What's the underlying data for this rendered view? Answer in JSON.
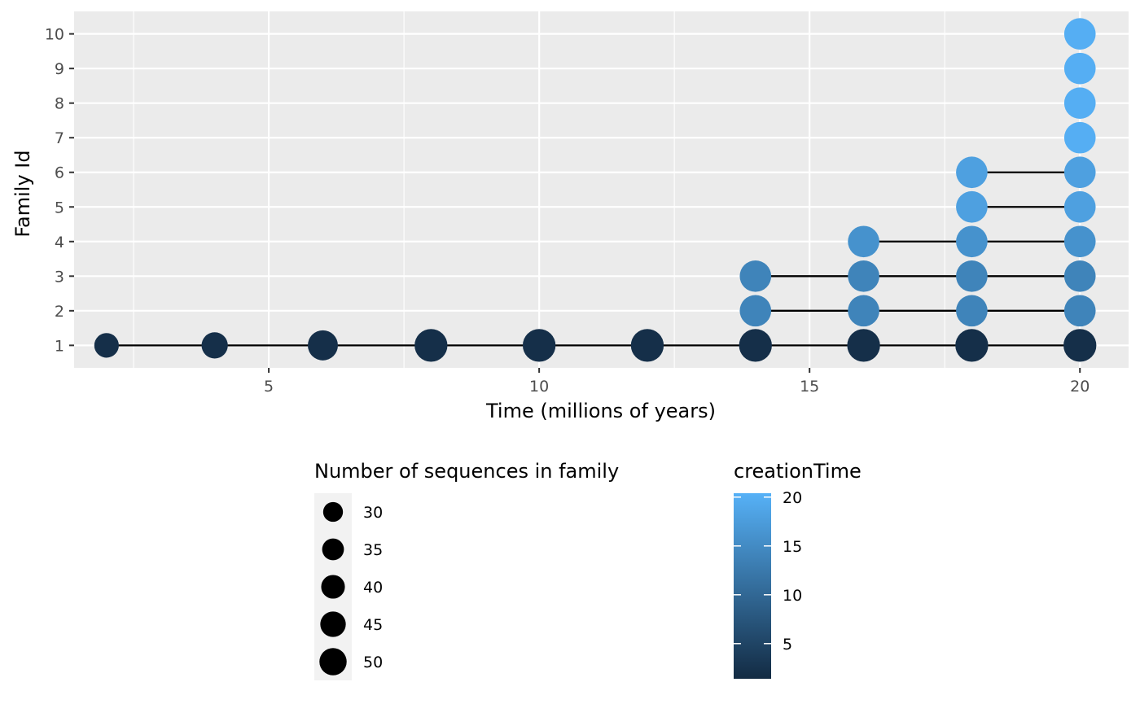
{
  "chart_data": {
    "type": "scatter",
    "xlabel": "Time (millions of years)",
    "ylabel": "Family Id",
    "xlim": [
      1.4,
      20.9
    ],
    "ylim": [
      0.35,
      10.65
    ],
    "x_ticks": [
      5,
      10,
      15,
      20
    ],
    "x_tick_labels": [
      "5",
      "10",
      "15",
      "20"
    ],
    "y_ticks": [
      1,
      2,
      3,
      4,
      5,
      6,
      7,
      8,
      9,
      10
    ],
    "y_tick_labels": [
      "1",
      "2",
      "3",
      "4",
      "5",
      "6",
      "7",
      "8",
      "9",
      "10"
    ],
    "grid": true,
    "panel_background": "#EBEBEB",
    "line_color": "#000000",
    "segments": [
      {
        "family": 1,
        "x_start": 2,
        "x_end": 20
      },
      {
        "family": 2,
        "x_start": 14,
        "x_end": 20
      },
      {
        "family": 3,
        "x_start": 14,
        "x_end": 20
      },
      {
        "family": 4,
        "x_start": 16,
        "x_end": 20
      },
      {
        "family": 5,
        "x_start": 18,
        "x_end": 20
      },
      {
        "family": 6,
        "x_start": 18,
        "x_end": 20
      }
    ],
    "points": [
      {
        "time": 2,
        "family": 1,
        "size": 28,
        "creationTime": 2
      },
      {
        "time": 4,
        "family": 1,
        "size": 32,
        "creationTime": 2
      },
      {
        "time": 6,
        "family": 1,
        "size": 42,
        "creationTime": 2
      },
      {
        "time": 8,
        "family": 1,
        "size": 50,
        "creationTime": 2
      },
      {
        "time": 10,
        "family": 1,
        "size": 50,
        "creationTime": 2
      },
      {
        "time": 12,
        "family": 1,
        "size": 50,
        "creationTime": 2
      },
      {
        "time": 14,
        "family": 1,
        "size": 50,
        "creationTime": 2
      },
      {
        "time": 16,
        "family": 1,
        "size": 50,
        "creationTime": 2
      },
      {
        "time": 18,
        "family": 1,
        "size": 50,
        "creationTime": 2
      },
      {
        "time": 20,
        "family": 1,
        "size": 50,
        "creationTime": 2
      },
      {
        "time": 14,
        "family": 2,
        "size": 46,
        "creationTime": 14
      },
      {
        "time": 16,
        "family": 2,
        "size": 46,
        "creationTime": 14
      },
      {
        "time": 18,
        "family": 2,
        "size": 46,
        "creationTime": 14
      },
      {
        "time": 20,
        "family": 2,
        "size": 46,
        "creationTime": 14
      },
      {
        "time": 14,
        "family": 3,
        "size": 46,
        "creationTime": 14
      },
      {
        "time": 16,
        "family": 3,
        "size": 46,
        "creationTime": 14
      },
      {
        "time": 18,
        "family": 3,
        "size": 46,
        "creationTime": 14
      },
      {
        "time": 20,
        "family": 3,
        "size": 46,
        "creationTime": 14
      },
      {
        "time": 16,
        "family": 4,
        "size": 46,
        "creationTime": 16
      },
      {
        "time": 18,
        "family": 4,
        "size": 46,
        "creationTime": 16
      },
      {
        "time": 20,
        "family": 4,
        "size": 46,
        "creationTime": 16
      },
      {
        "time": 18,
        "family": 5,
        "size": 46,
        "creationTime": 18
      },
      {
        "time": 20,
        "family": 5,
        "size": 46,
        "creationTime": 18
      },
      {
        "time": 18,
        "family": 6,
        "size": 46,
        "creationTime": 18
      },
      {
        "time": 20,
        "family": 6,
        "size": 46,
        "creationTime": 18
      },
      {
        "time": 20,
        "family": 7,
        "size": 46,
        "creationTime": 20
      },
      {
        "time": 20,
        "family": 8,
        "size": 46,
        "creationTime": 20
      },
      {
        "time": 20,
        "family": 9,
        "size": 46,
        "creationTime": 20
      },
      {
        "time": 20,
        "family": 10,
        "size": 46,
        "creationTime": 20
      }
    ],
    "size_legend": {
      "title": "Number of sequences in family",
      "breaks": [
        30,
        35,
        40,
        45,
        50
      ],
      "labels": [
        "30",
        "35",
        "40",
        "45",
        "50"
      ]
    },
    "color_legend": {
      "title": "creationTime",
      "min": 1.4,
      "max": 20.4,
      "breaks": [
        5,
        10,
        15,
        20
      ],
      "labels": [
        "5",
        "10",
        "15",
        "20"
      ],
      "low_color": "#132B43",
      "high_color": "#56B1F7"
    }
  }
}
